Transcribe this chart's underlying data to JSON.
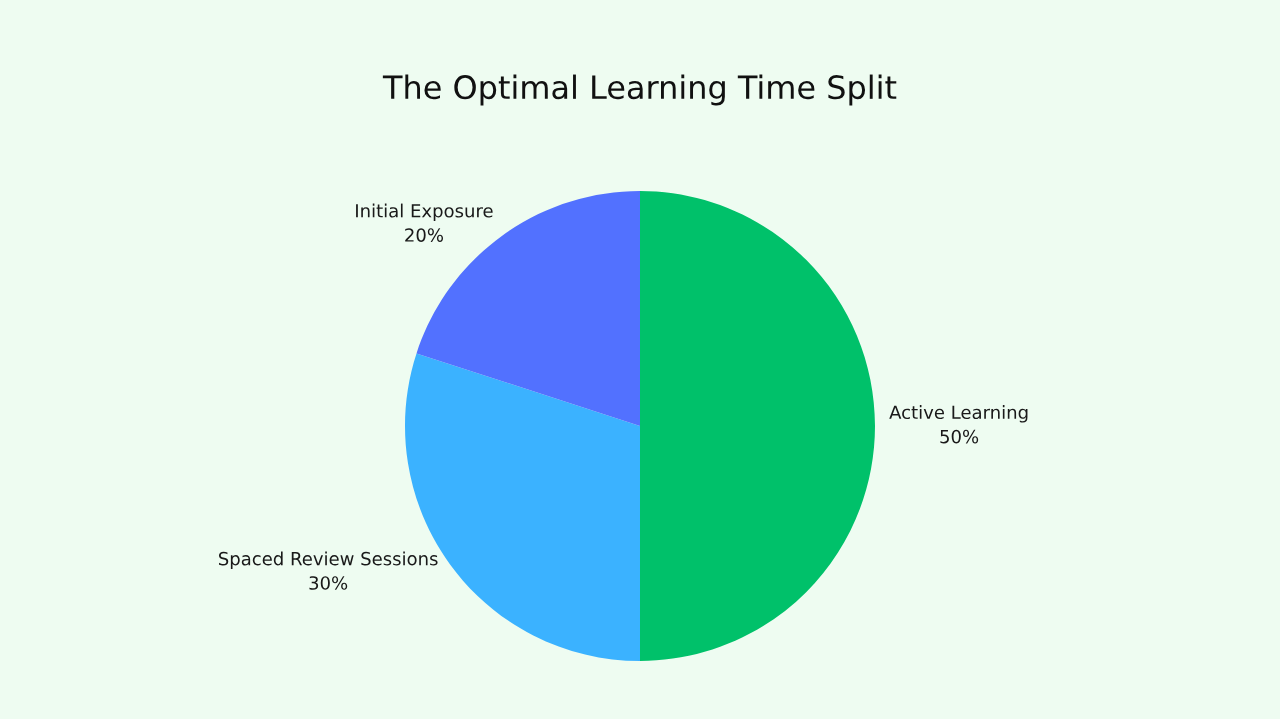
{
  "chart_data": {
    "type": "pie",
    "title": "The Optimal Learning Time Split",
    "categories": [
      "Active Learning",
      "Spaced Review Sessions",
      "Initial Exposure"
    ],
    "values": [
      50,
      30,
      20
    ],
    "value_labels": [
      "50%",
      "30%",
      "20%"
    ],
    "colors": [
      "#00c16a",
      "#3bb2ff",
      "#5271ff"
    ]
  }
}
